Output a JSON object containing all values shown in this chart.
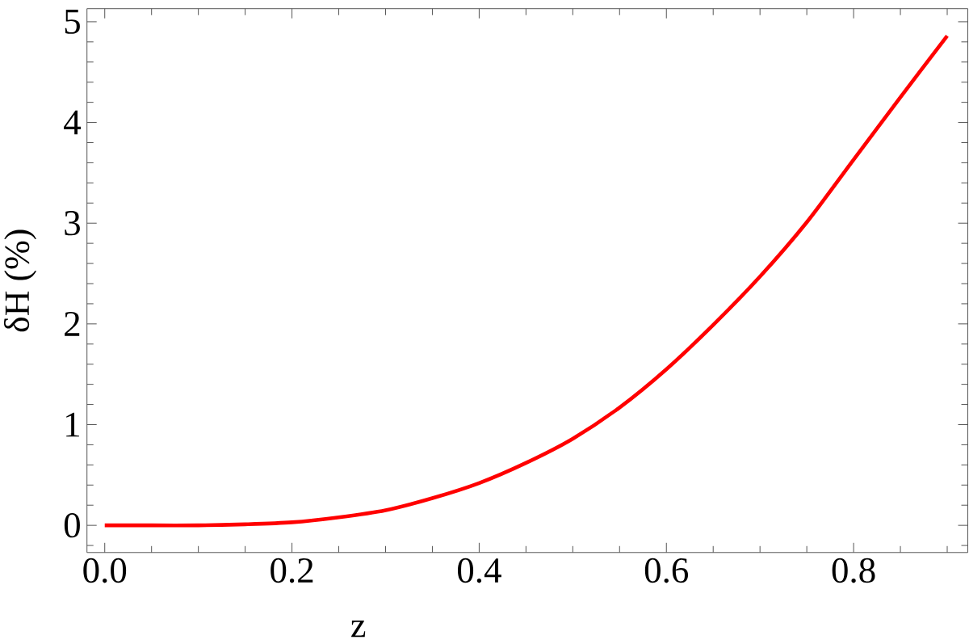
{
  "chart_data": {
    "type": "line",
    "xlabel": "z",
    "ylabel": "δH (%)",
    "x": [
      0,
      0.05,
      0.1,
      0.15,
      0.2,
      0.25,
      0.3,
      0.35,
      0.4,
      0.45,
      0.5,
      0.55,
      0.6,
      0.65,
      0.7,
      0.75,
      0.8,
      0.85,
      0.9
    ],
    "values": [
      0,
      0,
      0,
      0.01,
      0.03,
      0.08,
      0.15,
      0.27,
      0.42,
      0.62,
      0.86,
      1.17,
      1.55,
      1.99,
      2.47,
      3.01,
      3.63,
      4.25,
      4.86
    ],
    "color": "#ff0000",
    "xlim": [
      -0.019,
      0.922
    ],
    "ylim": [
      -0.27,
      5.13
    ],
    "xticks": [
      {
        "value": 0,
        "label": "0.0"
      },
      {
        "value": 0.05,
        "label": null
      },
      {
        "value": 0.1,
        "label": null
      },
      {
        "value": 0.15,
        "label": null
      },
      0.2,
      {
        "value": 0.25,
        "label": null
      },
      {
        "value": 0.3,
        "label": null
      },
      {
        "value": 0.35,
        "label": null
      },
      0.4,
      {
        "value": 0.45,
        "label": null
      },
      {
        "value": 0.5,
        "label": null
      },
      {
        "value": 0.55,
        "label": null
      },
      0.6,
      {
        "value": 0.65,
        "label": null
      },
      {
        "value": 0.7,
        "label": null
      },
      {
        "value": 0.75,
        "label": null
      },
      0.8,
      {
        "value": 0.85,
        "label": null
      },
      {
        "value": 0.9,
        "label": null
      }
    ],
    "yticks": [
      {
        "value": -0.2,
        "label": null
      },
      0,
      {
        "value": 0.2,
        "label": null
      },
      {
        "value": 0.4,
        "label": null
      },
      {
        "value": 0.6,
        "label": null
      },
      {
        "value": 0.8,
        "label": null
      },
      1,
      {
        "value": 1.2,
        "label": null
      },
      {
        "value": 1.4,
        "label": null
      },
      {
        "value": 1.6,
        "label": null
      },
      {
        "value": 1.8,
        "label": null
      },
      2,
      {
        "value": 2.2,
        "label": null
      },
      {
        "value": 2.4,
        "label": null
      },
      {
        "value": 2.6,
        "label": null
      },
      {
        "value": 2.8,
        "label": null
      },
      3,
      {
        "value": 3.2,
        "label": null
      },
      {
        "value": 3.4,
        "label": null
      },
      {
        "value": 3.6,
        "label": null
      },
      {
        "value": 3.8,
        "label": null
      },
      4,
      {
        "value": 4.2,
        "label": null
      },
      {
        "value": 4.4,
        "label": null
      },
      {
        "value": 4.6,
        "label": null
      },
      {
        "value": 4.8,
        "label": null
      },
      5
    ]
  }
}
